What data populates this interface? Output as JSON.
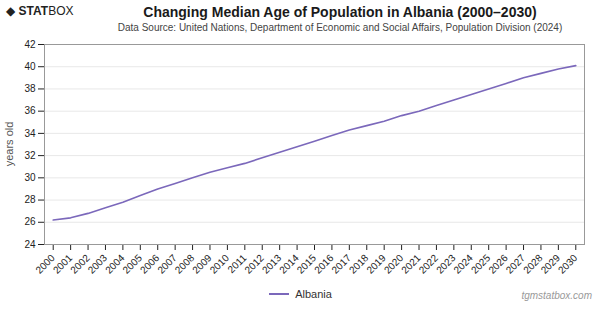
{
  "chart_data": {
    "type": "line",
    "title": "Changing Median Age of Population in Albania (2000–2030)",
    "subtitle": "Data Source: United Nations, Department of Economic and Social Affairs, Population Division (2024)",
    "ylabel": "years old",
    "x": [
      2000,
      2001,
      2002,
      2003,
      2004,
      2005,
      2006,
      2007,
      2008,
      2009,
      2010,
      2011,
      2012,
      2013,
      2014,
      2015,
      2016,
      2017,
      2018,
      2019,
      2020,
      2021,
      2022,
      2023,
      2024,
      2025,
      2026,
      2027,
      2028,
      2029,
      2030
    ],
    "series": [
      {
        "name": "Albania",
        "color": "#7B68BB",
        "values": [
          26.2,
          26.4,
          26.8,
          27.3,
          27.8,
          28.4,
          29.0,
          29.5,
          30.0,
          30.5,
          30.9,
          31.3,
          31.8,
          32.3,
          32.8,
          33.3,
          33.8,
          34.3,
          34.7,
          35.1,
          35.6,
          36.0,
          36.5,
          37.0,
          37.5,
          38.0,
          38.5,
          39.0,
          39.4,
          39.8,
          40.1
        ]
      }
    ],
    "xlim": [
      1999.5,
      2030.5
    ],
    "xticks": [
      2000,
      2001,
      2002,
      2003,
      2004,
      2005,
      2006,
      2007,
      2008,
      2009,
      2010,
      2011,
      2012,
      2013,
      2014,
      2015,
      2016,
      2017,
      2018,
      2019,
      2020,
      2021,
      2022,
      2023,
      2024,
      2025,
      2026,
      2027,
      2028,
      2029,
      2030
    ],
    "ylim": [
      24,
      42
    ],
    "yticks": [
      24,
      26,
      28,
      30,
      32,
      34,
      36,
      38,
      40,
      42
    ],
    "grid": true,
    "legend": "bottom",
    "annotations": [
      "◆ STAT",
      "BOX",
      "tgmstatbox.com"
    ]
  }
}
